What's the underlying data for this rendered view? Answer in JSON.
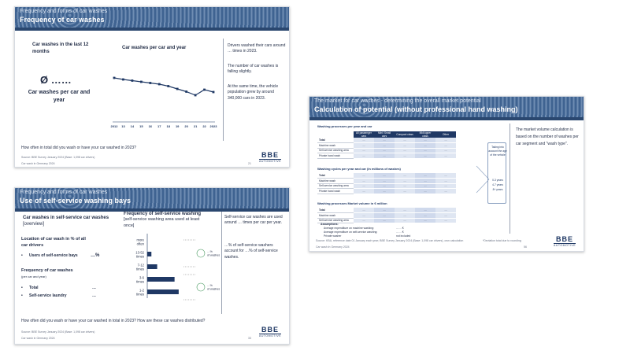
{
  "slide1": {
    "supertitle": "Frequency and forms of car washes",
    "title": "Frequency of car washes",
    "left_heading": "Car washes in the last 12 months",
    "symbol": "Ø ……",
    "left_caption": "Car washes per car and year",
    "chart_title": "Car washes per car and year",
    "notes": [
      "Drivers washed their cars around … times in 2023.",
      "The number of car washes is falling slightly.",
      "At the same time, the vehicle population grew by around 340,000 cars in 2023."
    ],
    "question": "How often in total did you wash or have your car washed in 2023?",
    "source": "Source: BBE Survey January 2024 (Base: 1,098 car drivers)",
    "footer": "Car wash in Germany 2024",
    "page": "21",
    "logo": "BBE",
    "logo_sub": "AUTOMOTIVE"
  },
  "chart_data": {
    "type": "line",
    "title": "Car washes per car and year",
    "x": [
      "2012",
      "13",
      "14",
      "15",
      "16",
      "17",
      "18",
      "19",
      "20",
      "21",
      "22",
      "2023"
    ],
    "series": [
      {
        "values": [
          10.0,
          9.6,
          9.3,
          9.0,
          8.7,
          8.4,
          7.9,
          7.2,
          6.5,
          5.6,
          7.0,
          6.4
        ]
      }
    ],
    "ylim": [
      0,
      14
    ],
    "grid": false,
    "line_color": "#1f3864"
  },
  "slide2": {
    "supertitle": "Frequency and forms of car washes",
    "title": "Use of self-service washing bays",
    "left_heading": "Car washes in self-service car washes",
    "left_sub": "[overview]",
    "location_heading": "Location of car wash in % of all car drivers",
    "location_item": "Users of self-service bays",
    "location_value": "…%",
    "freq_heading": "Frequency of car washes",
    "freq_sub": "(per car and year)",
    "freq_items": [
      {
        "label": "Total",
        "value": "…"
      },
      {
        "label": "Self-service laundry",
        "value": "…"
      }
    ],
    "mid_heading": "Frequency of self-service washing",
    "mid_sub": "[self-service washing area used at least once]",
    "categories": [
      "more often",
      "13-52 times",
      "7-12 times",
      "3-6 times",
      "1-2 times"
    ],
    "bar_values": [
      0,
      5,
      12,
      33,
      38
    ],
    "pct_label": "…% of washes",
    "notes": [
      "Self-service car washes are used around … times per car per year.",
      "…% of self-service washers account for …% of self-service washes."
    ],
    "question": "How often did you wash or have your car washed in total in 2023? How are these car washes distributed?",
    "source": "Source: BBE Survey January 2024 (Base: 1,098 car drivers)",
    "footer": "Car wash in Germany 2024",
    "page": "33",
    "logo": "BBE",
    "logo_sub": "AUTOMOTIVE"
  },
  "slide3": {
    "supertitle": "The market for car washes - determining the overall market potential",
    "title": "Calculation of potential (without professional hand washing)",
    "table1_title": "Washing processes per year and car",
    "columns": [
      "All passenger cars",
      "Mini/ Small cars",
      "Compact class",
      "Mid/upper class",
      "Other"
    ],
    "table1_rows": [
      "Total",
      "Machine wash",
      "Self-service washing area",
      "Private hand wash"
    ],
    "table2_title": "Washing cycles per year and car (in millions of washes)",
    "table2_rows": [
      "Total",
      "Machine wash",
      "Self-service washing area",
      "Private hand wash"
    ],
    "table3_title": "Washing processes Market volume in € million",
    "table3_rows": [
      "Total",
      "Machine wash",
      "Self-service washing area"
    ],
    "cell": "…",
    "callout": "Taking into account the age of the vehicle",
    "ages": [
      "0-3 years",
      "4-7 years",
      "8+ years"
    ],
    "assumptions_title": "Assumptions:",
    "assumptions": [
      {
        "label": "Average expenditure on machine washing:",
        "value": "…… €"
      },
      {
        "label": "Average expenditure on self-service washing:",
        "value": "…… €"
      },
      {
        "label": "Private washer",
        "value": "not included"
      }
    ],
    "side_note": "The market volume calculation is based on the number of washes per car segment and \"wash type\".",
    "source": "Source: KBA, reference date 01 January each year; BBE Survey January 2024 (Base: 1,098 car drivers), own calculation",
    "rounding": "*Deviation total due to rounding",
    "footer": "Car wash in Germany 2024",
    "page": "56",
    "logo": "BBE",
    "logo_sub": "AUTOMOTIVE"
  }
}
